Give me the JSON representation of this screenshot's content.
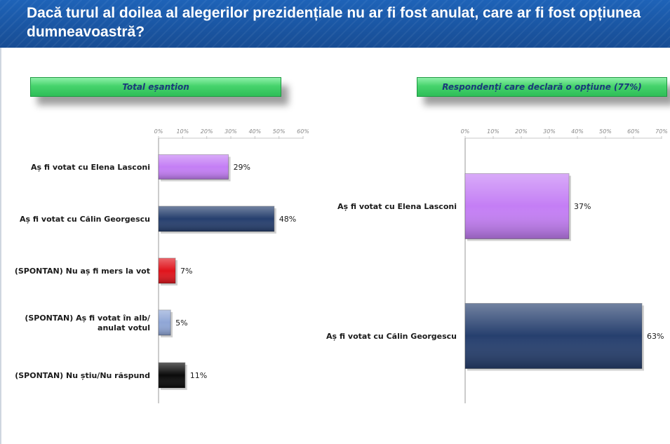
{
  "header": {
    "title": "Dacă turul al doilea al alegerilor prezidențiale nu ar fi fost anulat, care ar fi fost opțiunea dumneavoastră?"
  },
  "chart_data": [
    {
      "type": "bar",
      "orientation": "horizontal",
      "title": "Total eșantion",
      "categories": [
        [
          "Aș fi votat cu Elena Lasconi"
        ],
        [
          "Aș fi votat cu Călin Georgescu"
        ],
        [
          "(SPONTAN) Nu aș fi mers la vot"
        ],
        [
          "(SPONTAN) Aș fi votat în alb/",
          "anulat votul"
        ],
        [
          "(SPONTAN) Nu știu/Nu răspund"
        ]
      ],
      "values": [
        29,
        48,
        7,
        5,
        11
      ],
      "value_labels": [
        "29%",
        "48%",
        "7%",
        "5%",
        "11%"
      ],
      "colors": [
        "#c47ef5",
        "#263f6e",
        "#e0141c",
        "#8fa6d6",
        "#0a0a0a"
      ],
      "xlim": [
        0,
        60
      ],
      "ticks": [
        "0%",
        "10%",
        "20%",
        "30%",
        "40%",
        "50%",
        "60%"
      ],
      "grid": false
    },
    {
      "type": "bar",
      "orientation": "horizontal",
      "title": "Respondenți care declară o opțiune (77%)",
      "categories": [
        [
          "Aș fi votat cu Elena Lasconi"
        ],
        [
          "Aș fi votat cu Călin Georgescu"
        ]
      ],
      "values": [
        37,
        63
      ],
      "value_labels": [
        "37%",
        "63%"
      ],
      "colors": [
        "#c47ef5",
        "#263f6e"
      ],
      "xlim": [
        0,
        70
      ],
      "ticks": [
        "0%",
        "10%",
        "20%",
        "30%",
        "40%",
        "50%",
        "60%",
        "70%"
      ],
      "grid": false
    }
  ]
}
